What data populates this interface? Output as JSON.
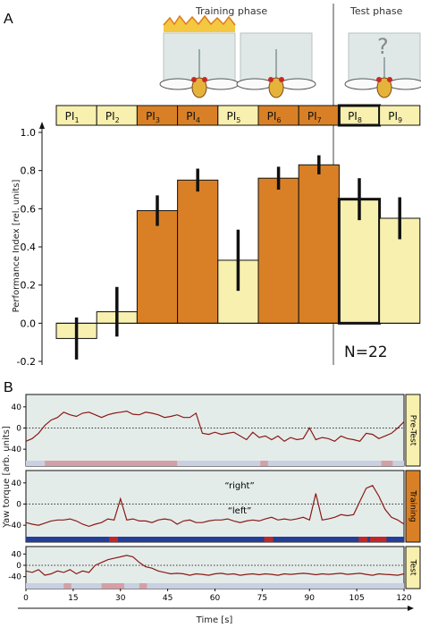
{
  "panel_a": {
    "letter": "A",
    "training_label": "Training phase",
    "test_label": "Test phase",
    "question_mark": "?",
    "n_label": "N=22"
  },
  "panel_b": {
    "letter": "B"
  },
  "colors": {
    "training": "#d98026",
    "test": "#f8f0ae",
    "trace": "#8b1a14",
    "bg_trace": "#e4ecea",
    "right_strip": "#c8d0e2",
    "left_strip_test": "#d4a0a6",
    "strip_training": "#233e96",
    "strip_training_mark": "#c0262c",
    "heat": "#f5c842"
  },
  "chart_data": [
    {
      "type": "bar",
      "categories": [
        "PI1",
        "PI2",
        "PI3",
        "PI4",
        "PI5",
        "PI6",
        "PI7",
        "PI8",
        "PI9"
      ],
      "category_base": [
        "PI",
        "PI",
        "PI",
        "PI",
        "PI",
        "PI",
        "PI",
        "PI",
        "PI"
      ],
      "category_sub": [
        "1",
        "2",
        "3",
        "4",
        "5",
        "6",
        "7",
        "8",
        "9"
      ],
      "phases": [
        "test",
        "test",
        "training",
        "training",
        "test",
        "training",
        "training",
        "test",
        "test"
      ],
      "values": [
        -0.08,
        0.06,
        0.59,
        0.75,
        0.33,
        0.76,
        0.83,
        0.65,
        0.55
      ],
      "errors": [
        0.11,
        0.13,
        0.08,
        0.06,
        0.16,
        0.06,
        0.05,
        0.11,
        0.11
      ],
      "ylabel": "Performance Index [rel. units]",
      "ylim": [
        -0.2,
        1.0
      ],
      "yticks": [
        "-0.2",
        "0.0",
        "0.2",
        "0.4",
        "0.6",
        "0.8",
        "1.0"
      ],
      "grid": false
    },
    {
      "type": "line",
      "ylabel": "Yaw torque [arb. units]",
      "xlabel": "Time [s]",
      "xlim": [
        0,
        120
      ],
      "ylim": [
        -60,
        60
      ],
      "xticks": [
        "0",
        "15",
        "30",
        "45",
        "60",
        "75",
        "90",
        "105",
        "120"
      ],
      "yticks": [
        "40",
        "0",
        "-40"
      ],
      "subplots": [
        {
          "name": "Pre-Test",
          "series": [
            {
              "x": [
                0,
                2,
                4,
                6,
                8,
                10,
                12,
                14,
                16,
                18,
                20,
                22,
                24,
                26,
                28,
                30,
                32,
                34,
                36,
                38,
                40,
                42,
                44,
                46,
                48,
                50,
                52,
                54,
                56,
                58,
                60,
                62,
                64,
                66,
                68,
                70,
                72,
                74,
                76,
                78,
                80,
                82,
                84,
                86,
                88,
                90,
                92,
                94,
                96,
                98,
                100,
                102,
                104,
                106,
                108,
                110,
                112,
                114,
                116,
                118,
                120
              ],
              "y": [
                -25,
                -20,
                -10,
                5,
                15,
                20,
                30,
                25,
                22,
                28,
                30,
                25,
                20,
                25,
                28,
                30,
                32,
                26,
                25,
                30,
                28,
                25,
                20,
                22,
                25,
                20,
                20,
                28,
                -10,
                -12,
                -8,
                -12,
                -10,
                -8,
                -15,
                -22,
                -8,
                -18,
                -15,
                -22,
                -15,
                -25,
                -18,
                -22,
                -20,
                0,
                -22,
                -18,
                -20,
                -25,
                -15,
                -20,
                -22,
                -25,
                -10,
                -12,
                -20,
                -15,
                -10,
                0,
                12
              ]
            }
          ],
          "annotations": []
        },
        {
          "name": "Training",
          "series": [
            {
              "x": [
                0,
                2,
                4,
                6,
                8,
                10,
                12,
                14,
                16,
                18,
                20,
                22,
                24,
                26,
                28,
                30,
                32,
                34,
                36,
                38,
                40,
                42,
                44,
                46,
                48,
                50,
                52,
                54,
                56,
                58,
                60,
                62,
                64,
                66,
                68,
                70,
                72,
                74,
                76,
                78,
                80,
                82,
                84,
                86,
                88,
                90,
                92,
                94,
                96,
                98,
                100,
                102,
                104,
                106,
                108,
                110,
                112,
                114,
                116,
                118,
                120
              ],
              "y": [
                -35,
                -38,
                -40,
                -36,
                -32,
                -30,
                -30,
                -28,
                -32,
                -38,
                -42,
                -38,
                -35,
                -28,
                -30,
                10,
                -30,
                -28,
                -32,
                -32,
                -35,
                -30,
                -28,
                -30,
                -38,
                -32,
                -30,
                -35,
                -35,
                -32,
                -30,
                -30,
                -28,
                -32,
                -35,
                -32,
                -30,
                -32,
                -28,
                -25,
                -30,
                -28,
                -30,
                -28,
                -25,
                -30,
                20,
                -30,
                -28,
                -25,
                -20,
                -22,
                -20,
                5,
                30,
                35,
                15,
                -10,
                -25,
                -30,
                -38
              ]
            }
          ],
          "annotations": [
            "“right”",
            "“left”"
          ]
        },
        {
          "name": "Test",
          "series": [
            {
              "x": [
                0,
                2,
                4,
                6,
                8,
                10,
                12,
                14,
                16,
                18,
                20,
                22,
                24,
                26,
                28,
                30,
                32,
                34,
                36,
                38,
                40,
                42,
                44,
                46,
                48,
                50,
                52,
                54,
                56,
                58,
                60,
                62,
                64,
                66,
                68,
                70,
                72,
                74,
                76,
                78,
                80,
                82,
                84,
                86,
                88,
                90,
                92,
                94,
                96,
                98,
                100,
                102,
                104,
                106,
                108,
                110,
                112,
                114,
                116,
                118,
                120
              ],
              "y": [
                -20,
                -25,
                -15,
                -35,
                -30,
                -20,
                -25,
                -15,
                -30,
                -20,
                -25,
                0,
                10,
                20,
                25,
                30,
                35,
                30,
                10,
                -5,
                -10,
                -20,
                -25,
                -30,
                -28,
                -30,
                -35,
                -30,
                -32,
                -35,
                -30,
                -28,
                -32,
                -30,
                -35,
                -32,
                -30,
                -33,
                -30,
                -32,
                -35,
                -30,
                -32,
                -30,
                -28,
                -30,
                -33,
                -30,
                -32,
                -30,
                -28,
                -32,
                -30,
                -28,
                -32,
                -35,
                -30,
                -32,
                -33,
                -35,
                -30
              ]
            }
          ],
          "annotations": []
        }
      ]
    }
  ]
}
